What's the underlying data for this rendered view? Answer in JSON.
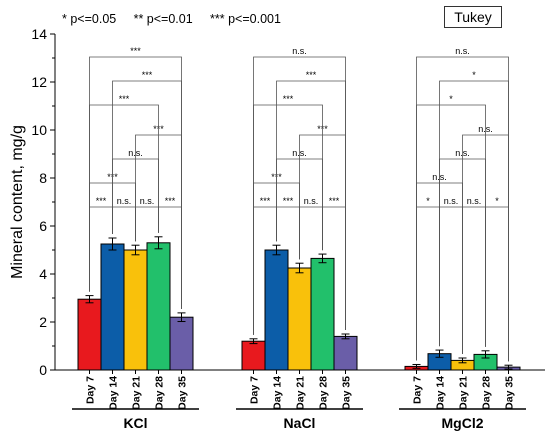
{
  "legend_note": "* p<=0.05     ** p<=0.01     *** p<=0.001",
  "test_label": "Tukey",
  "colors": {
    "Day 7": "#e8191e",
    "Day 14": "#0c5da8",
    "Day 21": "#f9c10b",
    "Day 28": "#22c06b",
    "Day 35": "#6a5ea8"
  },
  "chart_data": {
    "type": "bar",
    "ylabel": "Mineral content, mg/g",
    "ylim": [
      0,
      14
    ],
    "yticks": [
      0,
      2,
      4,
      6,
      8,
      10,
      12,
      14
    ],
    "days": [
      "Day 7",
      "Day 14",
      "Day 21",
      "Day 28",
      "Day 35"
    ],
    "groups": [
      {
        "name": "KCl",
        "values": [
          2.95,
          5.25,
          5.0,
          5.3,
          2.2
        ],
        "errors": [
          0.15,
          0.25,
          0.2,
          0.25,
          0.18
        ],
        "comparisons": [
          {
            "a": 0,
            "b": 1,
            "sig": "***"
          },
          {
            "a": 1,
            "b": 2,
            "sig": "n.s."
          },
          {
            "a": 2,
            "b": 3,
            "sig": "n.s."
          },
          {
            "a": 3,
            "b": 4,
            "sig": "***"
          },
          {
            "a": 0,
            "b": 2,
            "sig": "***"
          },
          {
            "a": 1,
            "b": 3,
            "sig": "n.s."
          },
          {
            "a": 2,
            "b": 4,
            "sig": "***"
          },
          {
            "a": 0,
            "b": 3,
            "sig": "***"
          },
          {
            "a": 1,
            "b": 4,
            "sig": "***"
          },
          {
            "a": 0,
            "b": 4,
            "sig": "***"
          }
        ]
      },
      {
        "name": "NaCl",
        "values": [
          1.2,
          5.0,
          4.25,
          4.65,
          1.4
        ],
        "errors": [
          0.1,
          0.2,
          0.2,
          0.18,
          0.1
        ],
        "comparisons": [
          {
            "a": 0,
            "b": 1,
            "sig": "***"
          },
          {
            "a": 1,
            "b": 2,
            "sig": "***"
          },
          {
            "a": 2,
            "b": 3,
            "sig": "n.s."
          },
          {
            "a": 3,
            "b": 4,
            "sig": "***"
          },
          {
            "a": 0,
            "b": 2,
            "sig": "***"
          },
          {
            "a": 1,
            "b": 3,
            "sig": "n.s."
          },
          {
            "a": 2,
            "b": 4,
            "sig": "***"
          },
          {
            "a": 0,
            "b": 3,
            "sig": "***"
          },
          {
            "a": 1,
            "b": 4,
            "sig": "***"
          },
          {
            "a": 0,
            "b": 4,
            "sig": "n.s."
          }
        ]
      },
      {
        "name": "MgCl2",
        "values": [
          0.15,
          0.68,
          0.4,
          0.65,
          0.12
        ],
        "errors": [
          0.08,
          0.15,
          0.1,
          0.15,
          0.08
        ],
        "comparisons": [
          {
            "a": 0,
            "b": 1,
            "sig": "*"
          },
          {
            "a": 1,
            "b": 2,
            "sig": "n.s."
          },
          {
            "a": 2,
            "b": 3,
            "sig": "n.s."
          },
          {
            "a": 3,
            "b": 4,
            "sig": "*"
          },
          {
            "a": 0,
            "b": 2,
            "sig": "n.s."
          },
          {
            "a": 1,
            "b": 3,
            "sig": "n.s."
          },
          {
            "a": 2,
            "b": 4,
            "sig": "n.s."
          },
          {
            "a": 0,
            "b": 3,
            "sig": "*"
          },
          {
            "a": 1,
            "b": 4,
            "sig": "*"
          },
          {
            "a": 0,
            "b": 4,
            "sig": "n.s."
          }
        ]
      }
    ]
  }
}
